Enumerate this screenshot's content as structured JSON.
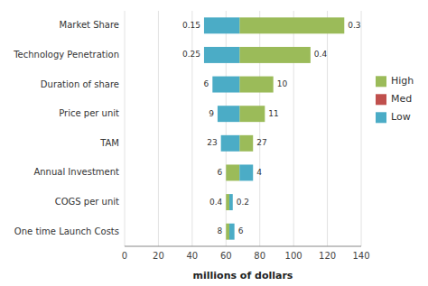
{
  "chart_data": {
    "type": "bar",
    "orientation": "horizontal",
    "categories": [
      "Market Share",
      "Technology Penetration",
      "Duration of share",
      "Price per unit",
      "TAM",
      "Annual Investment",
      "COGS per unit",
      "One time Launch Costs"
    ],
    "base": [
      68,
      68,
      68,
      68,
      68,
      68,
      62,
      62
    ],
    "series": [
      {
        "name": "High",
        "color": "#9BBB59",
        "values": [
          130,
          110,
          88,
          83,
          76,
          60,
          60,
          60
        ],
        "end_labels": [
          "0.3",
          "0.4",
          "10",
          "11",
          "27",
          "6",
          "0.4",
          "8"
        ]
      },
      {
        "name": "Med",
        "color": "#C0504D",
        "values": [
          null,
          null,
          null,
          null,
          null,
          null,
          null,
          null
        ]
      },
      {
        "name": "Low",
        "color": "#4BACC6",
        "values": [
          47,
          47,
          52,
          55,
          57,
          76,
          64,
          65
        ],
        "end_labels": [
          "0.15",
          "0.25",
          "6",
          "9",
          "23",
          "4",
          "0.2",
          "6"
        ]
      }
    ],
    "xlim": [
      0,
      140
    ],
    "xticks": [
      0,
      20,
      40,
      60,
      80,
      100,
      120,
      140
    ],
    "xlabel": "millions of dollars",
    "grid": true,
    "legend": "right"
  }
}
